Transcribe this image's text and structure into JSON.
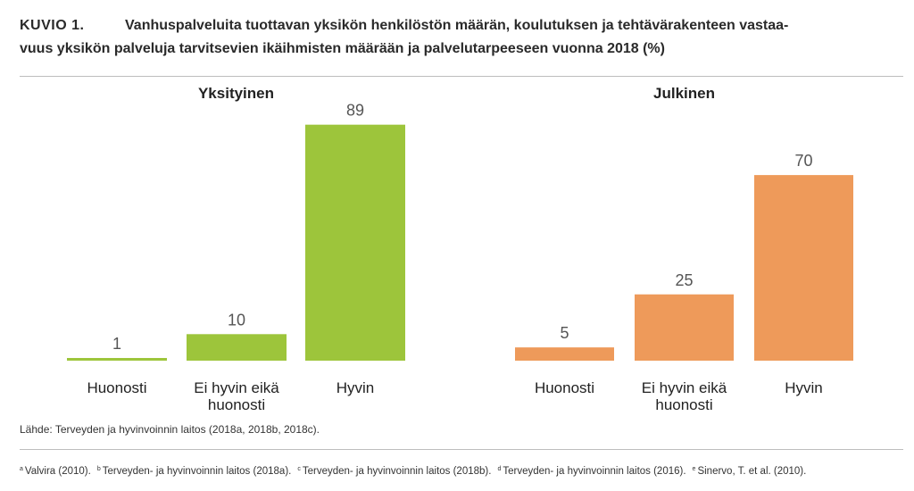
{
  "header": {
    "label": "KUVIO 1.",
    "title_line1": "Vanhuspalveluita tuottavan yksikön henkilöstön määrän, koulutuksen ja tehtävärakenteen vastaa-",
    "title_line2": "vuus yksikön palveluja tarvitsevien ikäihmisten määrään ja palvelutarpeeseen vuonna 2018 (%)"
  },
  "chart_data": [
    {
      "type": "bar",
      "title": "Yksityinen",
      "categories": [
        "Huonosti",
        "Ei hyvin eikä huonosti",
        "Hyvin"
      ],
      "category_lines": [
        [
          "Huonosti"
        ],
        [
          "Ei hyvin eikä",
          "huonosti"
        ],
        [
          "Hyvin"
        ]
      ],
      "values": [
        1,
        10,
        89
      ],
      "ylim": [
        0,
        100
      ],
      "color": "#9dc53b",
      "grid": false
    },
    {
      "type": "bar",
      "title": "Julkinen",
      "categories": [
        "Huonosti",
        "Ei hyvin eikä huonosti",
        "Hyvin"
      ],
      "category_lines": [
        [
          "Huonosti"
        ],
        [
          "Ei hyvin eikä",
          "huonosti"
        ],
        [
          "Hyvin"
        ]
      ],
      "values": [
        5,
        25,
        70
      ],
      "ylim": [
        0,
        100
      ],
      "color": "#ee9a5a",
      "grid": false
    }
  ],
  "source": "Lähde: Terveyden ja hyvinvoinnin laitos (2018a, 2018b, 2018c).",
  "footnotes": [
    {
      "mark": "a",
      "text": "Valvira (2010)."
    },
    {
      "mark": "b",
      "text": "Terveyden- ja hyvinvoinnin laitos (2018a)."
    },
    {
      "mark": "c",
      "text": "Terveyden- ja hyvinvoinnin laitos (2018b)."
    },
    {
      "mark": "d",
      "text": "Terveyden- ja hyvinvoinnin laitos (2016)."
    },
    {
      "mark": "e",
      "text": "Sinervo, T. et al. (2010)."
    }
  ]
}
